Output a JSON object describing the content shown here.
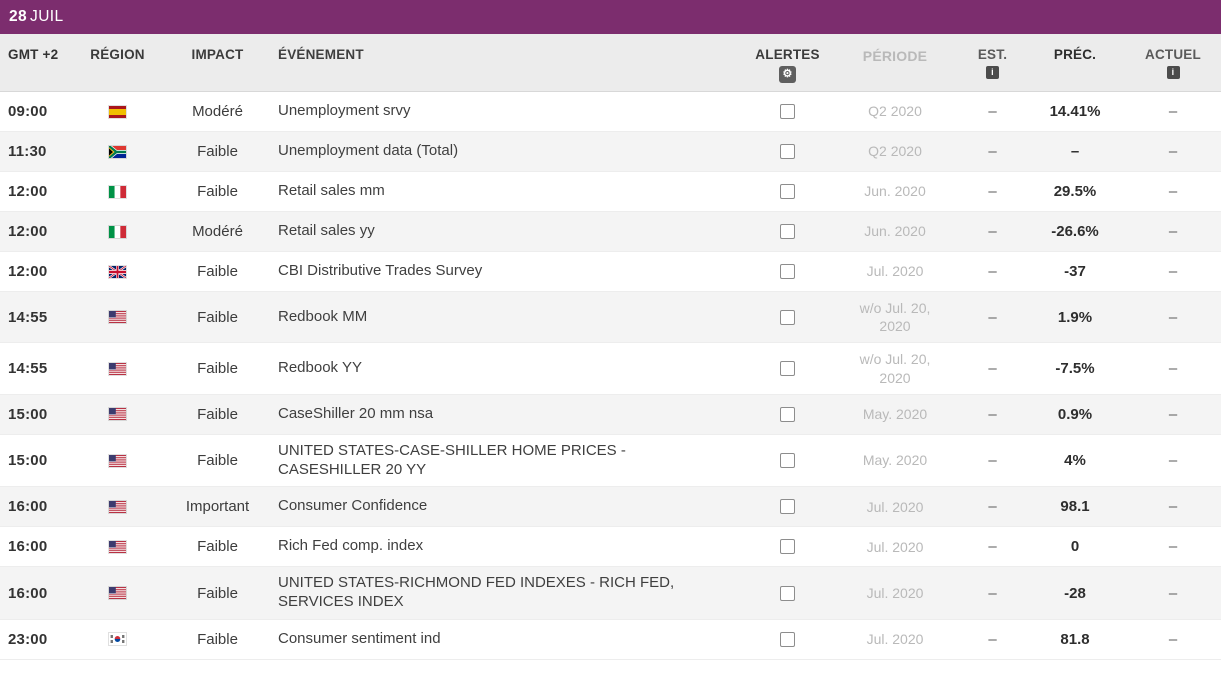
{
  "colors": {
    "date_bar_bg": "#7c2d6e",
    "header_row_bg": "#ececec",
    "alt_row_bg": "#f4f4f4",
    "period_text": "#b9b9b9"
  },
  "date_bar": {
    "day": "28",
    "month": "JUIL"
  },
  "icons": {
    "gear_glyph": "⚙",
    "info_glyph": "i"
  },
  "columns": {
    "time": "GMT +2",
    "region": "RÉGION",
    "impact": "IMPACT",
    "event": "ÉVÉNEMENT",
    "alerts": "ALERTES",
    "period": "PÉRIODE",
    "est": "EST.",
    "prev": "PRÉC.",
    "actual": "ACTUEL"
  },
  "rows": [
    {
      "time": "09:00",
      "country": "spain",
      "impact": "Modéré",
      "event": "Unemployment srvy",
      "period": "Q2 2020",
      "est": "–",
      "prev": "14.41%",
      "actual": "–"
    },
    {
      "time": "11:30",
      "country": "south-africa",
      "impact": "Faible",
      "event": "Unemployment data (Total)",
      "period": "Q2 2020",
      "est": "–",
      "prev": "–",
      "actual": "–"
    },
    {
      "time": "12:00",
      "country": "italy",
      "impact": "Faible",
      "event": "Retail sales mm",
      "period": "Jun. 2020",
      "est": "–",
      "prev": "29.5%",
      "actual": "–"
    },
    {
      "time": "12:00",
      "country": "italy",
      "impact": "Modéré",
      "event": "Retail sales yy",
      "period": "Jun. 2020",
      "est": "–",
      "prev": "-26.6%",
      "actual": "–"
    },
    {
      "time": "12:00",
      "country": "uk",
      "impact": "Faible",
      "event": "CBI Distributive Trades Survey",
      "period": "Jul. 2020",
      "est": "–",
      "prev": "-37",
      "actual": "–"
    },
    {
      "time": "14:55",
      "country": "usa",
      "impact": "Faible",
      "event": "Redbook MM",
      "period": "w/o Jul. 20, 2020",
      "est": "–",
      "prev": "1.9%",
      "actual": "–"
    },
    {
      "time": "14:55",
      "country": "usa",
      "impact": "Faible",
      "event": "Redbook YY",
      "period": "w/o Jul. 20, 2020",
      "est": "–",
      "prev": "-7.5%",
      "actual": "–"
    },
    {
      "time": "15:00",
      "country": "usa",
      "impact": "Faible",
      "event": "CaseShiller 20 mm nsa",
      "period": "May. 2020",
      "est": "–",
      "prev": "0.9%",
      "actual": "–"
    },
    {
      "time": "15:00",
      "country": "usa",
      "impact": "Faible",
      "event": "UNITED STATES-CASE-SHILLER HOME PRICES - CASESHILLER 20 YY",
      "period": "May. 2020",
      "est": "–",
      "prev": "4%",
      "actual": "–"
    },
    {
      "time": "16:00",
      "country": "usa",
      "impact": "Important",
      "event": "Consumer Confidence",
      "period": "Jul. 2020",
      "est": "–",
      "prev": "98.1",
      "actual": "–"
    },
    {
      "time": "16:00",
      "country": "usa",
      "impact": "Faible",
      "event": "Rich Fed comp. index",
      "period": "Jul. 2020",
      "est": "–",
      "prev": "0",
      "actual": "–"
    },
    {
      "time": "16:00",
      "country": "usa",
      "impact": "Faible",
      "event": "UNITED STATES-RICHMOND FED INDEXES - RICH FED, SERVICES INDEX",
      "period": "Jul. 2020",
      "est": "–",
      "prev": "-28",
      "actual": "–"
    },
    {
      "time": "23:00",
      "country": "south-korea",
      "impact": "Faible",
      "event": "Consumer sentiment ind",
      "period": "Jul. 2020",
      "est": "–",
      "prev": "81.8",
      "actual": "–"
    }
  ]
}
